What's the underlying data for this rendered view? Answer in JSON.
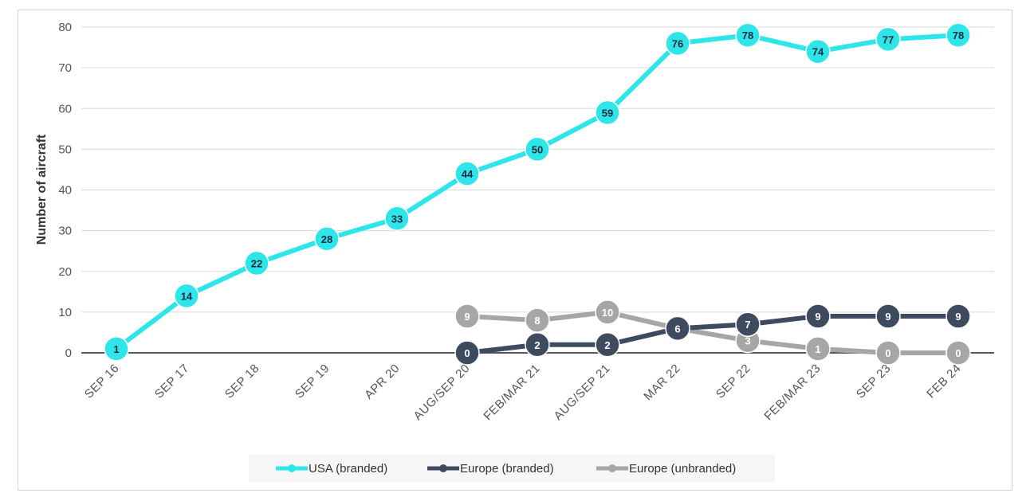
{
  "caption": "",
  "chart_data": {
    "type": "line",
    "title": "",
    "xlabel": "",
    "ylabel": "Number of aircraft",
    "ylim": [
      0,
      80
    ],
    "yticks": [
      0,
      10,
      20,
      30,
      40,
      50,
      60,
      70,
      80
    ],
    "grid": true,
    "legend_position": "bottom",
    "categories": [
      "SEP 16",
      "SEP 17",
      "SEP 18",
      "SEP 19",
      "APR 20",
      "AUG/SEP 20",
      "FEB/MAR 21",
      "AUG/SEP 21",
      "MAR 22",
      "SEP 22",
      "FEB/MAR 23",
      "SEP 23",
      "FEB 24"
    ],
    "series": [
      {
        "name": "USA (branded)",
        "color": "#2ee6ea",
        "label_color": "#1f2a3a",
        "values": [
          1,
          14,
          22,
          28,
          33,
          44,
          50,
          59,
          76,
          78,
          74,
          77,
          78
        ]
      },
      {
        "name": "Europe (branded)",
        "color": "#3e4a5e",
        "label_color": "#ffffff",
        "values": [
          null,
          null,
          null,
          null,
          null,
          0,
          2,
          2,
          6,
          7,
          9,
          9,
          9
        ]
      },
      {
        "name": "Europe (unbranded)",
        "color": "#a6a6a6",
        "label_color": "#ffffff",
        "values": [
          null,
          null,
          null,
          null,
          null,
          9,
          8,
          10,
          6,
          3,
          1,
          0,
          0
        ]
      }
    ]
  }
}
